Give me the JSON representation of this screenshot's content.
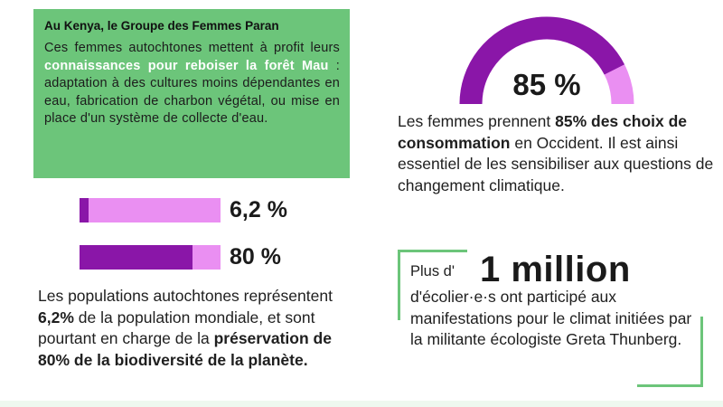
{
  "colors": {
    "green": "#6cc57a",
    "purple_dark": "#8a16a8",
    "purple_light": "#ea8ff2"
  },
  "paran_box": {
    "title": "Au Kenya, le Groupe des Femmes Paran",
    "text_before": "Ces femmes autochtones mettent à profit leurs ",
    "text_highlight": "connaissances pour reboiser la forêt Mau",
    "text_after": " : adaptation à des cultures moins dépendantes en eau, fabrication de charbon végétal, ou mise en place d'un système de collecte d'eau."
  },
  "bars": [
    {
      "label": "6,2 %",
      "percent": 6.2
    },
    {
      "label": "80 %",
      "percent": 80
    }
  ],
  "population_text": {
    "part1": "Les populations autochtones représentent ",
    "bold1": "6,2%",
    "part2": " de la population mondiale, et sont pourtant en charge de la ",
    "bold2": "préservation de 80% de la biodiversité de la planète."
  },
  "gauge": {
    "label": "85 %",
    "percent": 85
  },
  "women_text": {
    "part1": "Les femmes prennent ",
    "bold": "85% des choix de consommation",
    "part2": " en Occident. Il est ainsi essentiel de les sensibiliser aux questions de changement climatique."
  },
  "students": {
    "prefix": "Plus d'",
    "big": "1 million",
    "text": "d'écolier·e·s ont participé aux manifestations pour le climat initiées par la militante écologiste Greta Thunberg."
  }
}
